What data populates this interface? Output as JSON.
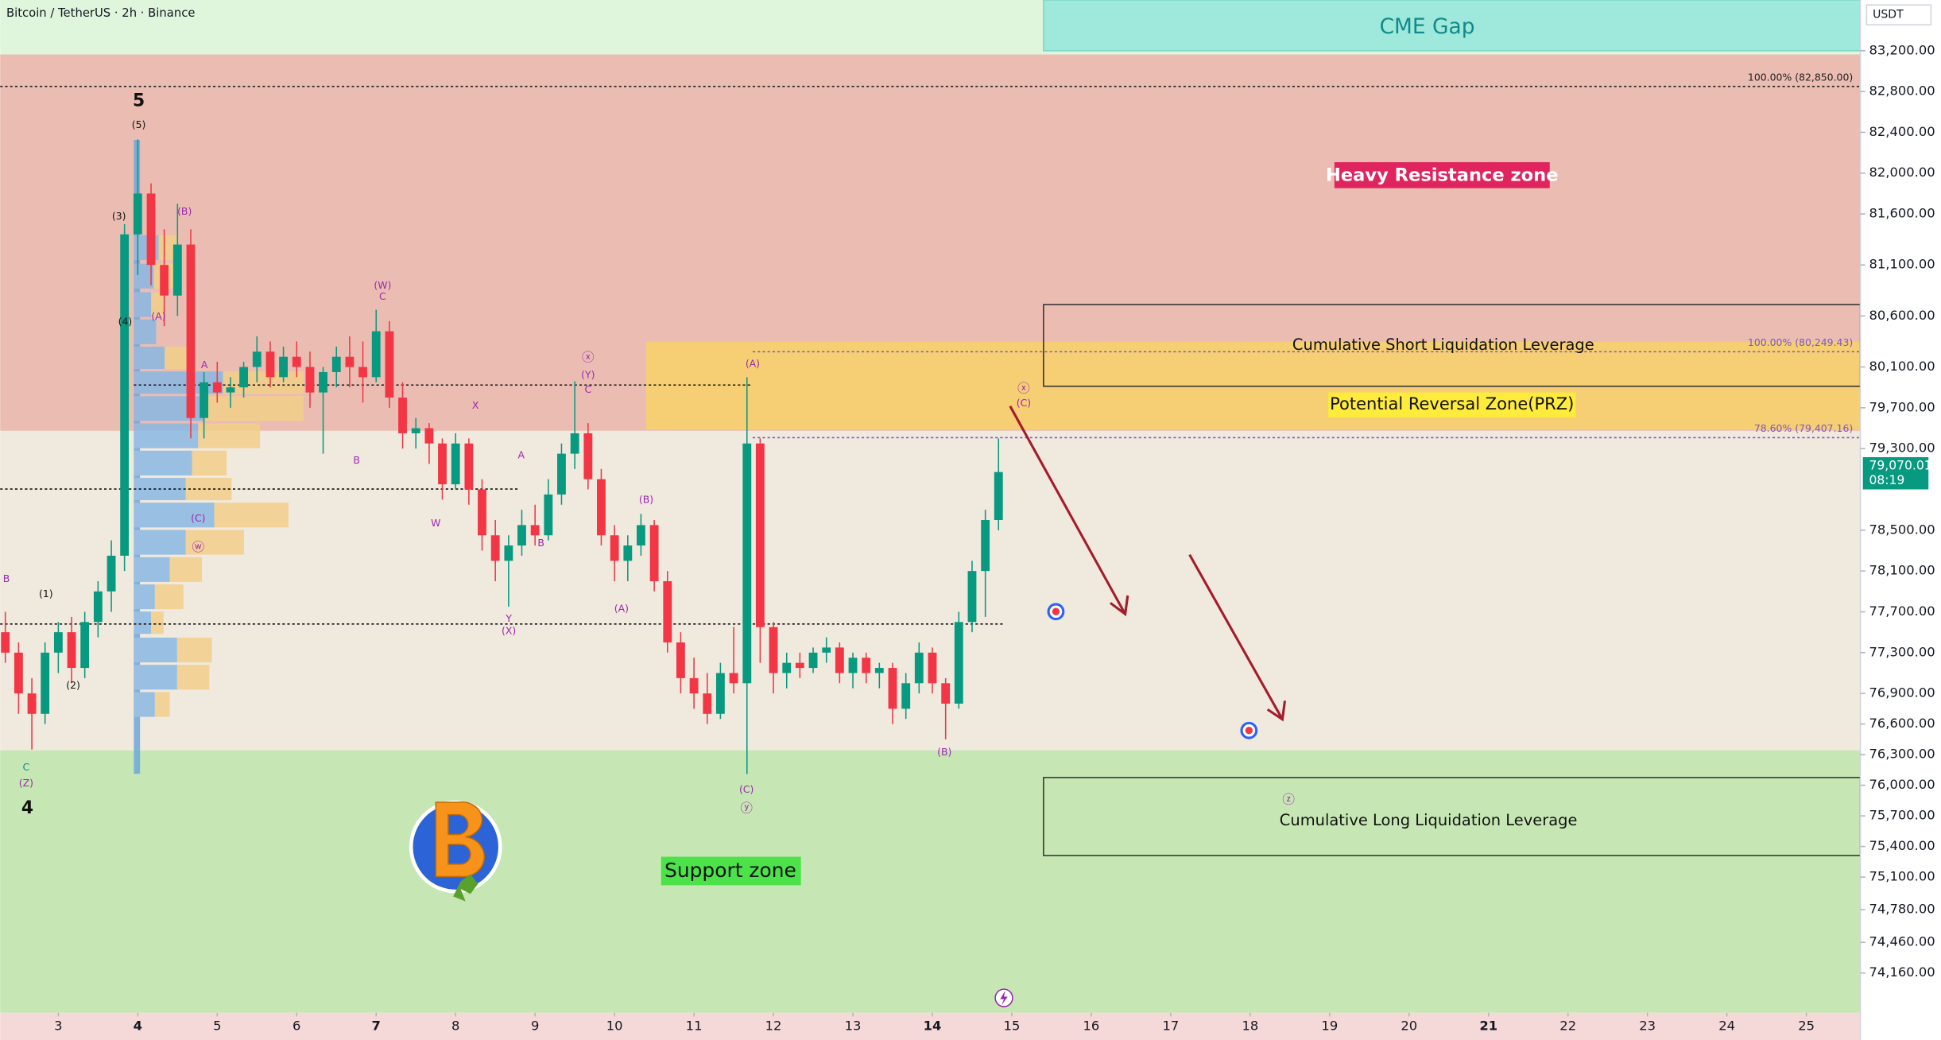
{
  "chart_data": {
    "type": "candlestick",
    "title": "Bitcoin / TetherUS · 2h · Binance",
    "currency": "USDT",
    "xlim": [
      2.268,
      25.68
    ],
    "xticks": [
      3,
      4,
      5,
      6,
      7,
      8,
      9,
      10,
      11,
      12,
      13,
      14,
      15,
      16,
      17,
      18,
      19,
      20,
      21,
      22,
      23,
      24,
      25
    ],
    "bold_xticks": [
      4,
      7,
      14,
      21
    ],
    "ylim": [
      73770,
      83697
    ],
    "yticks": [
      {
        "value": 83200,
        "label": "83,200.00"
      },
      {
        "value": 82800,
        "label": "82,800.00"
      },
      {
        "value": 82400,
        "label": "82,400.00"
      },
      {
        "value": 82000,
        "label": "82,000.00"
      },
      {
        "value": 81600,
        "label": "81,600.00"
      },
      {
        "value": 81100,
        "label": "81,100.00"
      },
      {
        "value": 80600,
        "label": "80,600.00"
      },
      {
        "value": 80100,
        "label": "80,100.00"
      },
      {
        "value": 79700,
        "label": "79,700.00"
      },
      {
        "value": 79300,
        "label": "79,300.00"
      },
      {
        "value": 78500,
        "label": "78,500.00"
      },
      {
        "value": 78100,
        "label": "78,100.00"
      },
      {
        "value": 77700,
        "label": "77,700.00"
      },
      {
        "value": 77300,
        "label": "77,300.00"
      },
      {
        "value": 76900,
        "label": "76,900.00"
      },
      {
        "value": 76600,
        "label": "76,600.00"
      },
      {
        "value": 76300,
        "label": "76,300.00"
      },
      {
        "value": 76000,
        "label": "76,000.00"
      },
      {
        "value": 75700,
        "label": "75,700.00"
      },
      {
        "value": 75400,
        "label": "75,400.00"
      },
      {
        "value": 75100,
        "label": "75,100.00"
      },
      {
        "value": 74780,
        "label": "74,780.00"
      },
      {
        "value": 74460,
        "label": "74,460.00"
      },
      {
        "value": 74160,
        "label": "74,160.00"
      }
    ],
    "up_color": "#089981",
    "down_color": "#f23645",
    "candles": {
      "x": [
        2.333,
        2.5,
        2.667,
        2.833,
        3,
        3.167,
        3.333,
        3.5,
        3.667,
        3.833,
        4,
        4.167,
        4.333,
        4.5,
        4.667,
        4.833,
        5,
        5.167,
        5.333,
        5.5,
        5.667,
        5.833,
        6,
        6.167,
        6.333,
        6.5,
        6.667,
        6.833,
        7,
        7.167,
        7.333,
        7.5,
        7.667,
        7.833,
        8,
        8.167,
        8.333,
        8.5,
        8.667,
        8.833,
        9,
        9.167,
        9.333,
        9.5,
        9.667,
        9.833,
        10,
        10.167,
        10.333,
        10.5,
        10.667,
        10.833,
        11,
        11.167,
        11.333,
        11.5,
        11.667,
        11.833,
        12,
        12.167,
        12.333,
        12.5,
        12.667,
        12.833,
        13,
        13.167,
        13.333,
        13.5,
        13.667,
        13.833,
        14,
        14.167,
        14.333,
        14.5,
        14.667,
        14.833
      ],
      "open": [
        77500,
        77300,
        76900,
        76700,
        77300,
        77500,
        77150,
        77600,
        77900,
        78250,
        81400,
        81800,
        81100,
        80800,
        81300,
        79600,
        79950,
        79850,
        79900,
        80100,
        80250,
        80000,
        80200,
        80100,
        79850,
        80050,
        80200,
        80100,
        80000,
        80450,
        79800,
        79450,
        79500,
        79350,
        78950,
        79350,
        78900,
        78450,
        78200,
        78350,
        78550,
        78450,
        78850,
        79250,
        79450,
        79000,
        78450,
        78200,
        78350,
        78550,
        78000,
        77400,
        77050,
        76900,
        76700,
        77100,
        77000,
        79350,
        77550,
        77100,
        77200,
        77150,
        77300,
        77350,
        77100,
        77250,
        77100,
        77150,
        76750,
        77000,
        77300,
        77000,
        76800,
        77600,
        78100,
        78600
      ],
      "high": [
        77700,
        77400,
        77050,
        77400,
        77600,
        77650,
        77700,
        78000,
        78400,
        81500,
        82330,
        81900,
        81450,
        81700,
        81450,
        80050,
        80150,
        80000,
        80150,
        80400,
        80350,
        80300,
        80350,
        80250,
        80100,
        80300,
        80400,
        80350,
        80660,
        80550,
        79950,
        79600,
        79550,
        79400,
        79450,
        79400,
        79000,
        78600,
        78450,
        78700,
        78750,
        79000,
        79350,
        79960,
        79550,
        79100,
        78550,
        78450,
        78660,
        78600,
        78100,
        77500,
        77250,
        77100,
        77200,
        77550,
        80000,
        79400,
        77600,
        77300,
        77300,
        77350,
        77450,
        77400,
        77300,
        77300,
        77200,
        77200,
        77100,
        77400,
        77350,
        77050,
        77700,
        78200,
        78700,
        79400
      ],
      "low": [
        77200,
        76700,
        76350,
        76600,
        77100,
        77000,
        77050,
        77450,
        77700,
        78100,
        81000,
        80900,
        80500,
        80600,
        79400,
        79400,
        79750,
        79700,
        79800,
        79950,
        79900,
        79950,
        80000,
        79700,
        79250,
        79900,
        79900,
        79750,
        79950,
        79700,
        79300,
        79300,
        79150,
        78800,
        78900,
        78750,
        78300,
        78000,
        77750,
        78250,
        78350,
        78400,
        78750,
        79100,
        78900,
        78350,
        78000,
        78000,
        78250,
        77900,
        77300,
        76900,
        76750,
        76600,
        76650,
        76900,
        76110,
        77200,
        76900,
        76950,
        77050,
        77100,
        77200,
        77000,
        76950,
        77000,
        76950,
        76600,
        76650,
        76900,
        76900,
        76450,
        76750,
        77500,
        77650,
        78500
      ],
      "close": [
        77300,
        76900,
        76700,
        77300,
        77500,
        77150,
        77600,
        77900,
        78250,
        81400,
        81800,
        81100,
        80800,
        81300,
        79600,
        79950,
        79850,
        79900,
        80100,
        80250,
        80000,
        80200,
        80100,
        79850,
        80050,
        80200,
        80100,
        80000,
        80450,
        79800,
        79450,
        79500,
        79350,
        78950,
        79350,
        78900,
        78450,
        78200,
        78350,
        78550,
        78450,
        78850,
        79250,
        79450,
        79000,
        78450,
        78200,
        78350,
        78550,
        78000,
        77400,
        77050,
        76900,
        76700,
        77100,
        77000,
        79350,
        77550,
        77100,
        77200,
        77150,
        77300,
        77350,
        77100,
        77250,
        77100,
        77150,
        76750,
        77000,
        77300,
        77000,
        76800,
        77600,
        78100,
        78600,
        79070.01
      ]
    },
    "last_price": {
      "value": 79070.01,
      "label": "79,070.01",
      "countdown": "08:19"
    },
    "fib_levels": [
      {
        "value": 82850,
        "label": "100.00% (82,850.00)",
        "color": "#222222"
      },
      {
        "value": 80249.43,
        "label": "100.00% (80,249.43)",
        "color": "#7e57c2"
      },
      {
        "value": 79407.16,
        "label": "78.60% (79,407.16)",
        "color": "#7e57c2"
      }
    ],
    "annotations": {
      "cme_gap": "CME Gap",
      "heavy_resistance": "Heavy Resistance zone",
      "prz": "Potential Reversal Zone(PRZ)",
      "short_liquidation": "Cumulative Short Liquidation Leverage",
      "long_liquidation": "Cumulative Long Liquidation Leverage",
      "support": "Support zone"
    },
    "wave_labels": [
      "5",
      "(5)",
      "(3)",
      "(4)",
      "(B)",
      "(A)",
      "A",
      "(C)",
      "ⓦ",
      "(1)",
      "(2)",
      "B",
      "C",
      "(Z)",
      "4",
      "(W)",
      "C",
      "B",
      "W",
      "X",
      "A",
      "B",
      "Y",
      "(X)",
      "ⓧ",
      "(Y)",
      "C",
      "(B)",
      "(A)",
      "(A)",
      "(C)",
      "ⓨ",
      "(B)",
      "ⓧ",
      "(C)",
      "ⓩ"
    ]
  }
}
